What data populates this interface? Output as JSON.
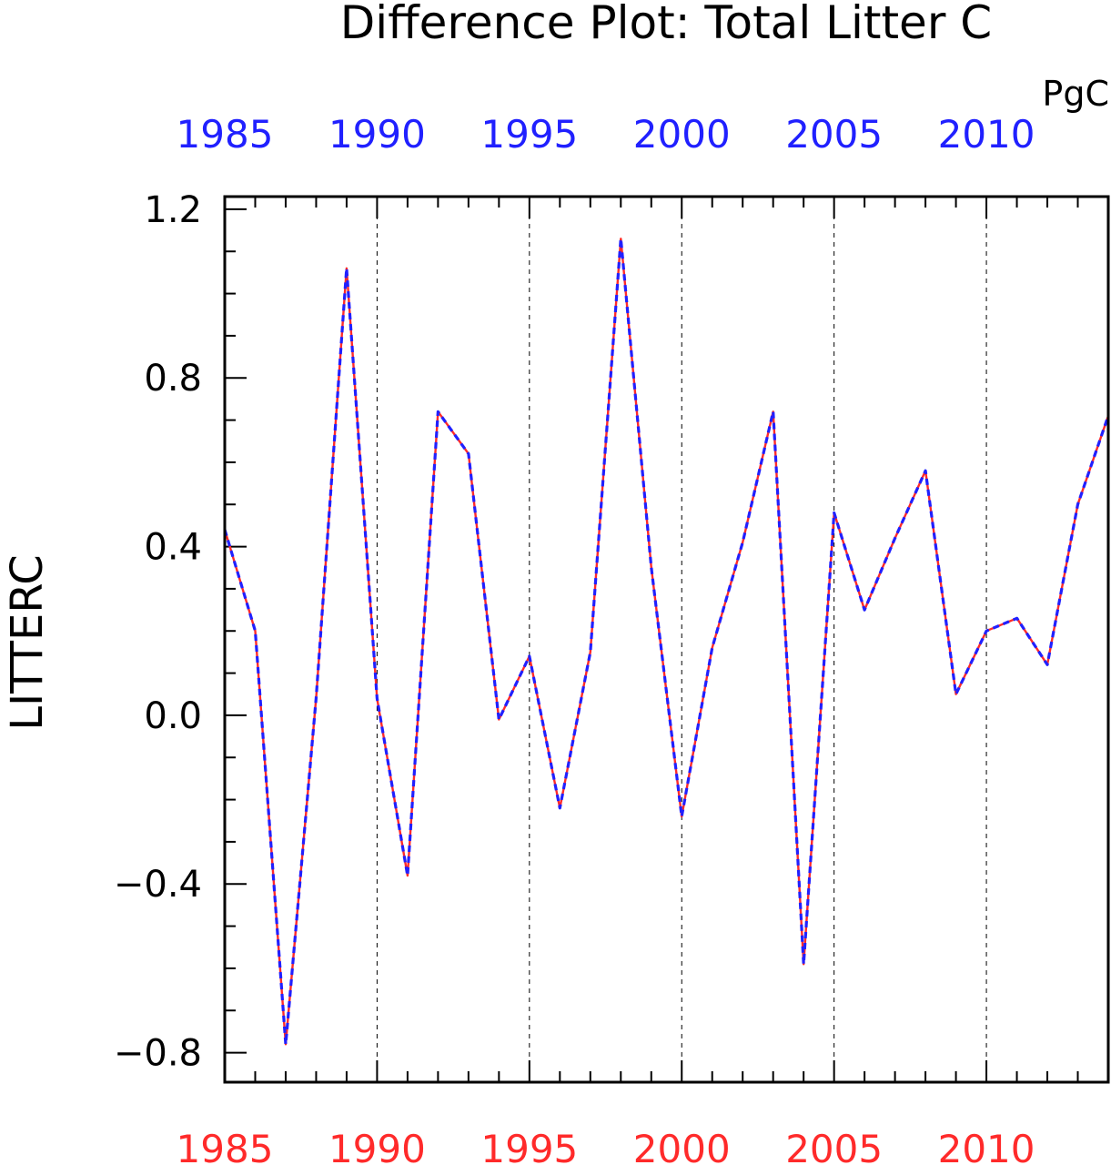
{
  "chart_data": {
    "type": "line",
    "title": "Difference Plot: Total Litter C",
    "units": "PgC",
    "ylabel": "LITTERC",
    "xlabel": "",
    "xlim": [
      1985,
      2014
    ],
    "ylim": [
      -0.87,
      1.23
    ],
    "y_ticks": [
      -0.8,
      -0.4,
      0.0,
      0.4,
      0.8,
      1.2
    ],
    "y_tick_labels": [
      "−0.8",
      "−0.4",
      "0.0",
      "0.4",
      "0.8",
      "1.2"
    ],
    "y_minor_step": 0.1,
    "x_ticks": [
      1985,
      1990,
      1995,
      2000,
      2005,
      2010
    ],
    "x_tick_labels_bottom": [
      "1985",
      "1990",
      "1995",
      "2000",
      "2005",
      "2010"
    ],
    "x_tick_labels_top": [
      "1985",
      "1990",
      "1995",
      "2000",
      "2005",
      "2010"
    ],
    "grid": "vertical-dashed",
    "legend": "none",
    "x": [
      1985,
      1986,
      1987,
      1988,
      1989,
      1990,
      1991,
      1992,
      1993,
      1994,
      1995,
      1996,
      1997,
      1998,
      1999,
      2000,
      2001,
      2002,
      2003,
      2004,
      2005,
      2006,
      2007,
      2008,
      2009,
      2010,
      2011,
      2012,
      2013,
      2014
    ],
    "series": [
      {
        "values": [
          0.44,
          0.2,
          -0.78,
          0.04,
          1.06,
          0.04,
          -0.38,
          0.72,
          0.62,
          -0.01,
          0.14,
          -0.22,
          0.15,
          1.13,
          0.35,
          -0.24,
          0.16,
          0.41,
          0.72,
          -0.59,
          0.48,
          0.25,
          0.42,
          0.58,
          0.05,
          0.2,
          0.23,
          0.12,
          0.5,
          0.71
        ],
        "color": "#ff2a2a",
        "style": "solid"
      },
      {
        "values": [
          0.44,
          0.2,
          -0.78,
          0.04,
          1.06,
          0.04,
          -0.38,
          0.72,
          0.62,
          -0.01,
          0.14,
          -0.22,
          0.15,
          1.13,
          0.35,
          -0.24,
          0.16,
          0.41,
          0.72,
          -0.59,
          0.48,
          0.25,
          0.42,
          0.58,
          0.05,
          0.2,
          0.23,
          0.12,
          0.5,
          0.71
        ],
        "color": "#2020ff",
        "style": "dashed"
      }
    ],
    "colors": {
      "axis": "#000000",
      "bottom_tick_labels": "#ff2a2a",
      "top_tick_labels": "#2020ff"
    }
  }
}
